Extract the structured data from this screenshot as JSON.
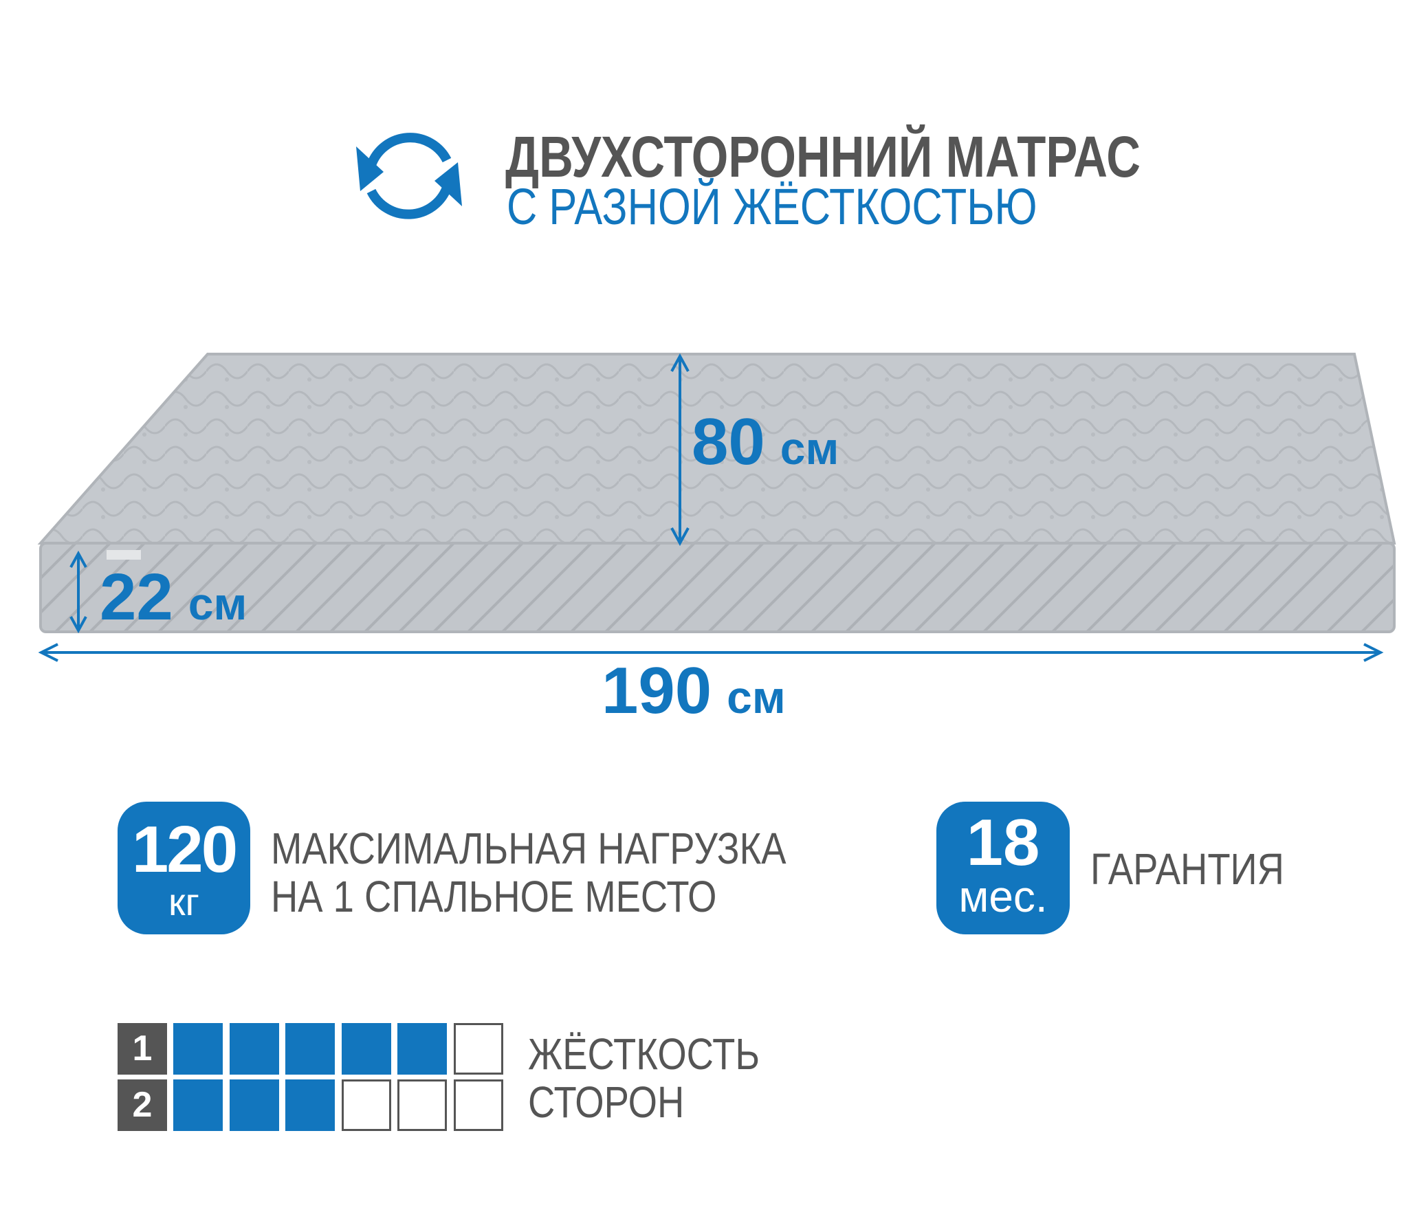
{
  "header": {
    "icon": "rotate-arrows-icon",
    "title": "ДВУХСТОРОННИЙ МАТРАС",
    "subtitle": "С РАЗНОЙ ЖЁСТКОСТЬЮ"
  },
  "dimensions": {
    "width": {
      "value": "80",
      "unit": "см"
    },
    "height": {
      "value": "22",
      "unit": "см"
    },
    "length": {
      "value": "190",
      "unit": "см"
    }
  },
  "load": {
    "value": "120",
    "unit": "кг",
    "line1": "МАКСИМАЛЬНАЯ НАГРУЗКА",
    "line2": "НА 1 СПАЛЬНОЕ МЕСТО"
  },
  "warranty": {
    "value": "18",
    "unit": "мес.",
    "label": "ГАРАНТИЯ"
  },
  "hardness": {
    "line1": "ЖЁСТКОСТЬ",
    "line2": "СТОРОН",
    "scale_max": 6,
    "sides": [
      {
        "label": "1",
        "level": 5
      },
      {
        "label": "2",
        "level": 3
      }
    ]
  },
  "colors": {
    "accent": "#1276be",
    "text": "#555555",
    "mattress": "#c5c9ce"
  }
}
